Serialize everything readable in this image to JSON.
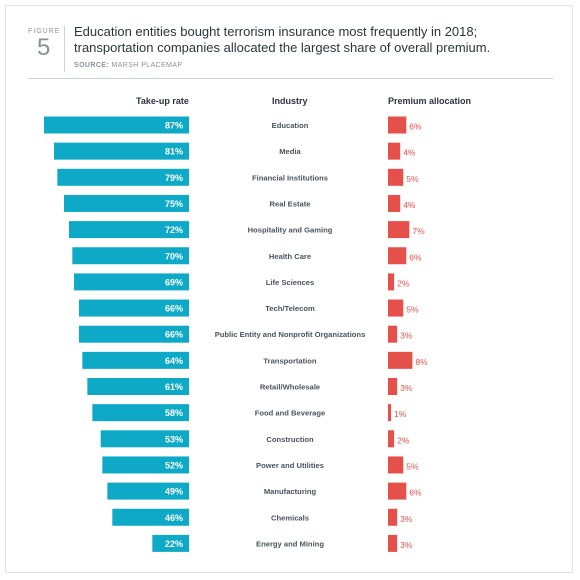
{
  "figure": {
    "label": "FIGURE",
    "number": "5"
  },
  "title": "Education entities bought terrorism insurance most frequently in 2018; transportation companies allocated the largest share of overall premium.",
  "source": {
    "label": "SOURCE:",
    "text": "MARSH PLACEMAP"
  },
  "headers": {
    "takeup": "Take-up rate",
    "industry": "Industry",
    "premium": "Premium allocation"
  },
  "colors": {
    "takeup_bar": "#0fa9c8",
    "premium_bar": "#e5504a",
    "premium_text": "#e5504a"
  },
  "chart_data": {
    "type": "bar",
    "categories": [
      "Education",
      "Media",
      "Financial Institutions",
      "Real Estate",
      "Hospitality and Gaming",
      "Health Care",
      "Life Sciences",
      "Tech/Telecom",
      "Public Entity and Nonprofit Organizations",
      "Transportation",
      "Retail/Wholesale",
      "Food and Beverage",
      "Construction",
      "Power and Utilities",
      "Manufacturing",
      "Chemicals",
      "Energy and Mining"
    ],
    "series": [
      {
        "name": "Take-up rate",
        "values": [
          87,
          81,
          79,
          75,
          72,
          70,
          69,
          66,
          66,
          64,
          61,
          58,
          53,
          52,
          49,
          46,
          22
        ],
        "labels": [
          "87%",
          "81%",
          "79%",
          "75%",
          "72%",
          "70%",
          "69%",
          "66%",
          "66%",
          "64%",
          "61%",
          "58%",
          "53%",
          "52%",
          "49%",
          "46%",
          "22%"
        ]
      },
      {
        "name": "Premium allocation",
        "values": [
          6,
          4,
          5,
          4,
          7,
          6,
          2,
          5,
          3,
          8,
          3,
          1,
          2,
          5,
          6,
          3,
          3
        ],
        "labels": [
          "6%",
          "4%",
          "5%",
          "4%",
          "7%",
          "6%",
          "2%",
          "5%",
          "3%",
          "8%",
          "3%",
          "1%",
          "2%",
          "5%",
          "6%",
          "3%",
          "3%"
        ]
      }
    ]
  }
}
